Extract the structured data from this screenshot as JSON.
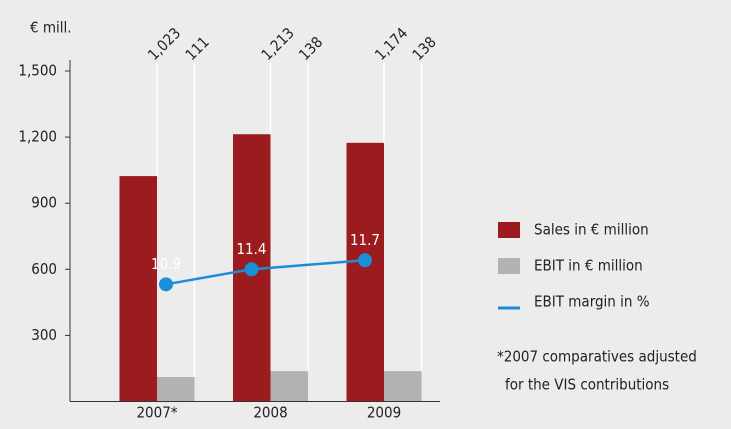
{
  "chart_data": {
    "type": "bar",
    "y_label": "€ mill.",
    "categories": [
      "2007*",
      "2008",
      "2009"
    ],
    "ylim": [
      0,
      1500
    ],
    "yticks": [
      {
        "value": 1500,
        "label": "1,500"
      },
      {
        "value": 1200,
        "label": "1,200"
      },
      900,
      600,
      300
    ],
    "y2lim": [
      7,
      18
    ],
    "series": [
      {
        "name": "Sales in € million",
        "color": "#9b1b1f",
        "values": [
          1023,
          1213,
          1174
        ],
        "value_labels": [
          "1,023",
          "1,213",
          "1,174"
        ]
      },
      {
        "name": "EBIT in € million",
        "color": "#b2b2b2",
        "values": [
          111,
          138,
          138
        ]
      },
      {
        "name": "EBIT margin in %",
        "type": "line",
        "axis": "y2",
        "color": "#1a8fd6",
        "values": [
          10.9,
          11.4,
          11.7
        ]
      }
    ],
    "footnote": [
      "*2007 comparatives adjusted",
      "for the VIS contributions"
    ]
  }
}
